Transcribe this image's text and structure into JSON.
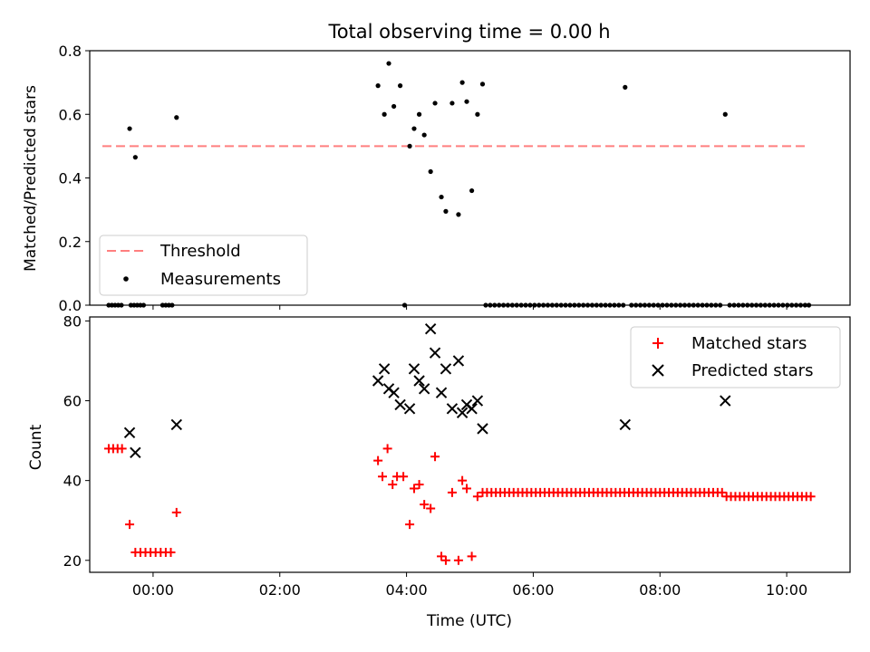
{
  "chart_data": [
    {
      "type": "scatter",
      "title": "Total observing time = 0.00 h",
      "xlabel": "",
      "ylabel": "Matched/Predicted stars",
      "xlim": [
        -1.0,
        11.0
      ],
      "ylim": [
        0.0,
        0.8
      ],
      "yticks": [
        0.0,
        0.2,
        0.4,
        0.6,
        0.8
      ],
      "ytick_labels": [
        "0.0",
        "0.2",
        "0.4",
        "0.6",
        "0.8"
      ],
      "legend_position": "lower-left",
      "threshold": {
        "name": "Threshold",
        "value": 0.5,
        "x_range": [
          -0.8,
          10.3
        ],
        "color": "#ff7f7f",
        "style": "dashed"
      },
      "series": [
        {
          "name": "Measurements",
          "color": "#000000",
          "marker": "dot",
          "x": [
            -0.7,
            -0.65,
            -0.6,
            -0.55,
            -0.5,
            -0.35,
            -0.3,
            -0.25,
            -0.2,
            -0.15,
            0.15,
            0.2,
            0.25,
            0.3,
            3.97,
            -0.37,
            -0.28,
            0.37,
            3.55,
            3.65,
            3.72,
            3.8,
            3.9,
            4.05,
            4.12,
            4.2,
            4.28,
            4.38,
            4.45,
            4.55,
            4.62,
            4.72,
            4.82,
            4.88,
            4.95,
            5.03,
            5.12,
            5.2,
            7.45,
            9.03,
            5.25,
            5.32,
            5.39,
            5.46,
            5.53,
            5.6,
            5.67,
            5.74,
            5.81,
            5.88,
            5.95,
            6.02,
            6.09,
            6.16,
            6.23,
            6.3,
            6.37,
            6.44,
            6.51,
            6.58,
            6.65,
            6.72,
            6.79,
            6.86,
            6.93,
            7.0,
            7.07,
            7.14,
            7.21,
            7.28,
            7.35,
            7.42,
            7.55,
            7.62,
            7.69,
            7.76,
            7.83,
            7.9,
            7.97,
            8.04,
            8.11,
            8.18,
            8.25,
            8.32,
            8.39,
            8.46,
            8.53,
            8.6,
            8.67,
            8.74,
            8.81,
            8.88,
            8.95,
            9.1,
            9.17,
            9.24,
            9.31,
            9.38,
            9.45,
            9.52,
            9.59,
            9.66,
            9.73,
            9.8,
            9.87,
            9.94,
            10.01,
            10.08,
            10.15,
            10.22,
            10.29,
            10.35
          ],
          "y": [
            0,
            0,
            0,
            0,
            0,
            0,
            0,
            0,
            0,
            0,
            0,
            0,
            0,
            0,
            0,
            0.555,
            0.465,
            0.59,
            0.69,
            0.6,
            0.76,
            0.625,
            0.69,
            0.5,
            0.555,
            0.6,
            0.535,
            0.42,
            0.635,
            0.34,
            0.295,
            0.635,
            0.285,
            0.7,
            0.64,
            0.36,
            0.6,
            0.695,
            0.685,
            0.6,
            0,
            0,
            0,
            0,
            0,
            0,
            0,
            0,
            0,
            0,
            0,
            0,
            0,
            0,
            0,
            0,
            0,
            0,
            0,
            0,
            0,
            0,
            0,
            0,
            0,
            0,
            0,
            0,
            0,
            0,
            0,
            0,
            0,
            0,
            0,
            0,
            0,
            0,
            0,
            0,
            0,
            0,
            0,
            0,
            0,
            0,
            0,
            0,
            0,
            0,
            0,
            0,
            0,
            0,
            0,
            0,
            0,
            0,
            0,
            0,
            0,
            0,
            0,
            0,
            0,
            0,
            0,
            0,
            0,
            0,
            0,
            0
          ]
        }
      ],
      "legend": [
        "Threshold",
        "Measurements"
      ]
    },
    {
      "type": "scatter",
      "title": "",
      "xlabel": "Time (UTC)",
      "ylabel": "Count",
      "xlim": [
        -1.0,
        11.0
      ],
      "ylim": [
        17,
        81
      ],
      "xticks": [
        0,
        2,
        4,
        6,
        8,
        10
      ],
      "xtick_labels": [
        "00:00",
        "02:00",
        "04:00",
        "06:00",
        "08:00",
        "10:00"
      ],
      "yticks": [
        20,
        40,
        60,
        80
      ],
      "ytick_labels": [
        "20",
        "40",
        "60",
        "80"
      ],
      "legend_position": "upper-right",
      "series": [
        {
          "name": "Matched stars",
          "color": "#ff0000",
          "marker": "plus",
          "x": [
            -0.7,
            -0.63,
            -0.56,
            -0.49,
            -0.37,
            -0.28,
            -0.2,
            -0.12,
            -0.04,
            0.04,
            0.12,
            0.2,
            0.28,
            0.37,
            3.55,
            3.62,
            3.7,
            3.78,
            3.85,
            3.95,
            4.05,
            4.12,
            4.2,
            4.28,
            4.38,
            4.45,
            4.55,
            4.62,
            4.72,
            4.82,
            4.88,
            4.95,
            5.03,
            5.12,
            5.2,
            5.27,
            5.34,
            5.41,
            5.48,
            5.55,
            5.62,
            5.69,
            5.76,
            5.83,
            5.9,
            5.97,
            6.04,
            6.11,
            6.18,
            6.25,
            6.32,
            6.39,
            6.46,
            6.53,
            6.6,
            6.67,
            6.74,
            6.81,
            6.88,
            6.95,
            7.02,
            7.09,
            7.16,
            7.23,
            7.3,
            7.37,
            7.44,
            7.51,
            7.58,
            7.65,
            7.72,
            7.79,
            7.86,
            7.93,
            8.0,
            8.07,
            8.14,
            8.21,
            8.28,
            8.35,
            8.42,
            8.49,
            8.56,
            8.63,
            8.7,
            8.77,
            8.84,
            8.91,
            8.98,
            9.05,
            9.12,
            9.19,
            9.26,
            9.33,
            9.4,
            9.47,
            9.54,
            9.61,
            9.68,
            9.75,
            9.82,
            9.89,
            9.96,
            10.03,
            10.1,
            10.17,
            10.24,
            10.31,
            10.38
          ],
          "y": [
            48,
            48,
            48,
            48,
            29,
            22,
            22,
            22,
            22,
            22,
            22,
            22,
            22,
            32,
            45,
            41,
            48,
            39,
            41,
            41,
            29,
            38,
            39,
            34,
            33,
            46,
            21,
            20,
            37,
            20,
            40,
            38,
            21,
            36,
            37,
            37,
            37,
            37,
            37,
            37,
            37,
            37,
            37,
            37,
            37,
            37,
            37,
            37,
            37,
            37,
            37,
            37,
            37,
            37,
            37,
            37,
            37,
            37,
            37,
            37,
            37,
            37,
            37,
            37,
            37,
            37,
            37,
            37,
            37,
            37,
            37,
            37,
            37,
            37,
            37,
            37,
            37,
            37,
            37,
            37,
            37,
            37,
            37,
            37,
            37,
            37,
            37,
            37,
            37,
            36,
            36,
            36,
            36,
            36,
            36,
            36,
            36,
            36,
            36,
            36,
            36,
            36,
            36,
            36,
            36,
            36,
            36,
            36,
            36
          ]
        },
        {
          "name": "Predicted stars",
          "color": "#000000",
          "marker": "x",
          "x": [
            -0.37,
            -0.28,
            0.37,
            3.55,
            3.65,
            3.72,
            3.8,
            3.9,
            4.05,
            4.12,
            4.2,
            4.28,
            4.38,
            4.45,
            4.55,
            4.62,
            4.72,
            4.82,
            4.88,
            4.95,
            5.03,
            5.12,
            5.2,
            7.45,
            9.03
          ],
          "y": [
            52,
            47,
            54,
            65,
            68,
            63,
            62,
            59,
            58,
            68,
            65,
            63,
            78,
            72,
            62,
            68,
            58,
            70,
            57,
            59,
            58,
            60,
            53,
            54,
            60
          ]
        }
      ],
      "legend": [
        "Matched stars",
        "Predicted stars"
      ]
    }
  ]
}
